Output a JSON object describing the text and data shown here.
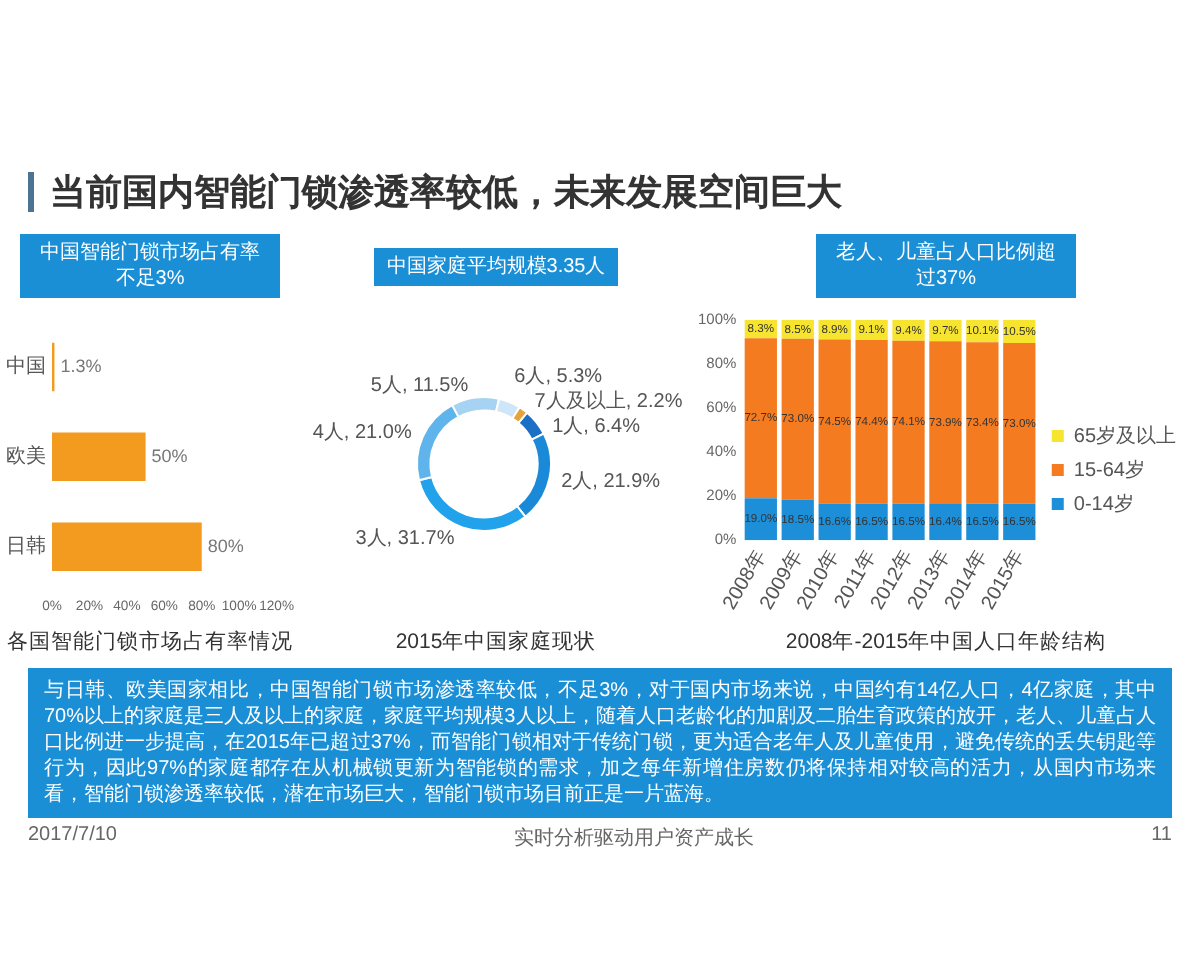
{
  "chart_data": [
    {
      "type": "other",
      "title": "当前国内智能门锁渗透率较低，未来发展空间巨大"
    },
    {
      "type": "bar",
      "orientation": "horizontal",
      "subtitle": "中国智能门锁市场占有率不足3%",
      "title": "各国智能门锁市场占有率情况",
      "categories": [
        "中国",
        "欧美",
        "日韩"
      ],
      "values": [
        1.3,
        50,
        80
      ],
      "value_labels": [
        "1.3%",
        "50%",
        "80%"
      ],
      "color": "#f39b1f",
      "xlim": [
        0,
        120
      ],
      "xticks": [
        {
          "value": 0,
          "label": "0%"
        },
        {
          "value": 20,
          "label": "20%"
        },
        {
          "value": 40,
          "label": "40%"
        },
        {
          "value": 60,
          "label": "60%"
        },
        {
          "value": 80,
          "label": "80%"
        },
        {
          "value": 100,
          "label": "100%"
        },
        {
          "value": 120,
          "label": "120%"
        }
      ]
    },
    {
      "type": "donut",
      "subtitle": "中国家庭平均规模3.35人",
      "title": "2015年中国家庭现状",
      "categories": [
        "1人",
        "2人",
        "3人",
        "4人",
        "5人",
        "6人",
        "7人及以上"
      ],
      "values": [
        6.4,
        21.9,
        31.7,
        21.0,
        11.5,
        5.3,
        2.2
      ],
      "value_labels": [
        "6.4%",
        "21.9%",
        "31.7%",
        "21.0%",
        "11.5%",
        "5.3%",
        "2.2%"
      ],
      "colors": [
        "#1b6fc4",
        "#1a8ad8",
        "#22a2ea",
        "#5fb4ec",
        "#a6d3f3",
        "#cfe6f8",
        "#e8a23a"
      ]
    },
    {
      "type": "bar",
      "stacked": true,
      "subtitle": "老人、儿童占人口比例超过37%",
      "title": "2008年-2015年中国人口年龄结构",
      "categories": [
        "2008年",
        "2009年",
        "2010年",
        "2011年",
        "2012年",
        "2013年",
        "2014年",
        "2015年"
      ],
      "series": [
        {
          "name": "0-14岁",
          "color": "#1d8fd8",
          "values": [
            19.0,
            18.5,
            16.6,
            16.5,
            16.5,
            16.4,
            16.5,
            16.5
          ],
          "value_labels": [
            "19.0%",
            "18.5%",
            "16.6%",
            "16.5%",
            "16.5%",
            "16.4%",
            "16.5%",
            "16.5%"
          ]
        },
        {
          "name": "15-64岁",
          "color": "#f47b20",
          "values": [
            72.7,
            73.0,
            74.5,
            74.4,
            74.1,
            73.9,
            73.4,
            73.0
          ],
          "value_labels": [
            "72.7%",
            "73.0%",
            "74.5%",
            "74.4%",
            "74.1%",
            "73.9%",
            "73.4%",
            "73.0%"
          ]
        },
        {
          "name": "65岁及以上",
          "color": "#f6e42e",
          "values": [
            8.3,
            8.5,
            8.9,
            9.1,
            9.4,
            9.7,
            10.1,
            10.5
          ],
          "value_labels": [
            "8.3%",
            "8.5%",
            "8.9%",
            "9.1%",
            "9.4%",
            "9.7%",
            "10.1%",
            "10.5%"
          ]
        }
      ],
      "ylim": [
        0,
        100
      ],
      "yticks": [
        {
          "value": 0,
          "label": "0%"
        },
        {
          "value": 20,
          "label": "20%"
        },
        {
          "value": 40,
          "label": "40%"
        },
        {
          "value": 60,
          "label": "60%"
        },
        {
          "value": 80,
          "label": "80%"
        },
        {
          "value": 100,
          "label": "100%"
        }
      ],
      "legend": "right"
    },
    {
      "type": "other",
      "annotations": [
        "与日韩、欧美国家相比，中国智能门锁市场渗透率较低，不足3%，对于国内市场来说，中国约有14亿人口，4亿家庭，其中70%以上的家庭是三人及以上的家庭，家庭平均规模3人以上，随着人口老龄化的加剧及二胎生育政策的放开，老人、儿童占人口比例进一步提高，在2015年已超过37%，而智能门锁相对于传统门锁，更为适合老年人及儿童使用，避免传统的丢失钥匙等行为，因此97%的家庭都存在从机械锁更新为智能锁的需求，加之每年新增住房数仍将保持相对较高的活力，从国内市场来看，智能门锁渗透率较低，潜在市场巨大，智能门锁市场目前正是一片蓝海。",
        "2017/7/10",
        "实时分析驱动用户资产成长",
        "11"
      ]
    }
  ]
}
